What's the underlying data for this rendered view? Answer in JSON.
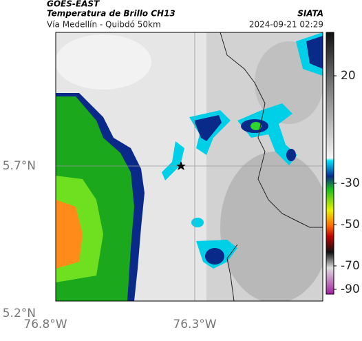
{
  "header": {
    "title": "GOES-EAST",
    "subtitle": "Temperatura de Brillo CH13",
    "route": "Vía Medellín - Quibdó 50km",
    "source": "SIATA",
    "timestamp": "2024-09-21 02:29"
  },
  "axes": {
    "x_labels": [
      "76.8°W",
      "76.3°W"
    ],
    "y_labels": [
      "5.7°N",
      "5.2°N"
    ]
  },
  "colorbar": {
    "labels": [
      "20",
      "-30",
      "-50",
      "-70",
      "-90"
    ]
  }
}
